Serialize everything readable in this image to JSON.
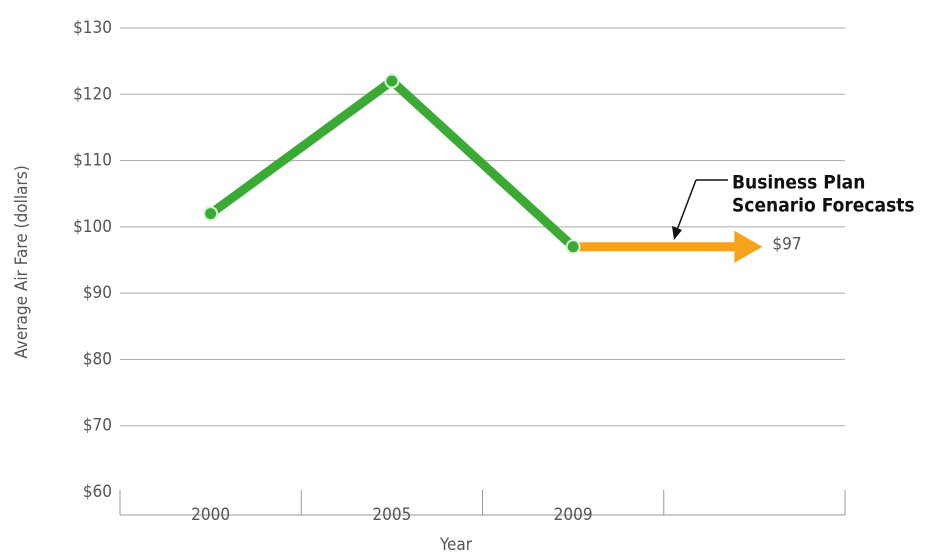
{
  "chart_data": {
    "type": "line",
    "y_label": "Average Air Fare (dollars)",
    "x_label": "Year",
    "categories": [
      "2000",
      "2005",
      "2009",
      null
    ],
    "series": [
      {
        "color": "#3aaa35",
        "values": [
          102,
          122,
          97,
          null
        ]
      },
      {
        "color": "#f7a21b",
        "values": [
          null,
          null,
          97,
          97
        ],
        "value_labels": [
          null,
          null,
          null,
          "$97"
        ]
      }
    ],
    "annotation": [
      "Business Plan",
      "Scenario Forecasts"
    ],
    "ylim": [
      60,
      130
    ],
    "yticks": [
      {
        "value": 60,
        "label": "$60"
      },
      {
        "value": 70,
        "label": "$70"
      },
      {
        "value": 80,
        "label": "$80"
      },
      {
        "value": 90,
        "label": "$90"
      },
      {
        "value": 100,
        "label": "$100"
      },
      {
        "value": 110,
        "label": "$110"
      },
      {
        "value": 120,
        "label": "$120"
      },
      {
        "value": 130,
        "label": "$130"
      }
    ],
    "grid": true
  }
}
